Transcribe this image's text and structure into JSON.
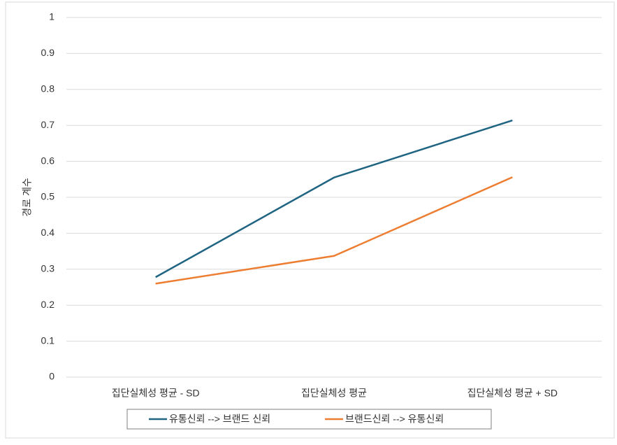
{
  "chart_data": {
    "type": "line",
    "y_label": "경로 계수",
    "categories": [
      "집단실체성 평균 - SD",
      "집단실체성 평균",
      "집단실체성 평균 + SD"
    ],
    "series": [
      {
        "name": "유통신뢰 --> 브랜드 신뢰",
        "color": "#1f6482",
        "values": [
          0.278,
          0.555,
          0.714
        ]
      },
      {
        "name": "브랜드신뢰 --> 유통신뢰",
        "color": "#ed7d31",
        "values": [
          0.26,
          0.337,
          0.556
        ]
      }
    ],
    "ylim": [
      0,
      1
    ],
    "yticks": [
      0,
      0.1,
      0.2,
      0.3,
      0.4,
      0.5,
      0.6,
      0.7,
      0.8,
      0.9,
      1
    ],
    "grid": true,
    "legend": "bottom"
  }
}
